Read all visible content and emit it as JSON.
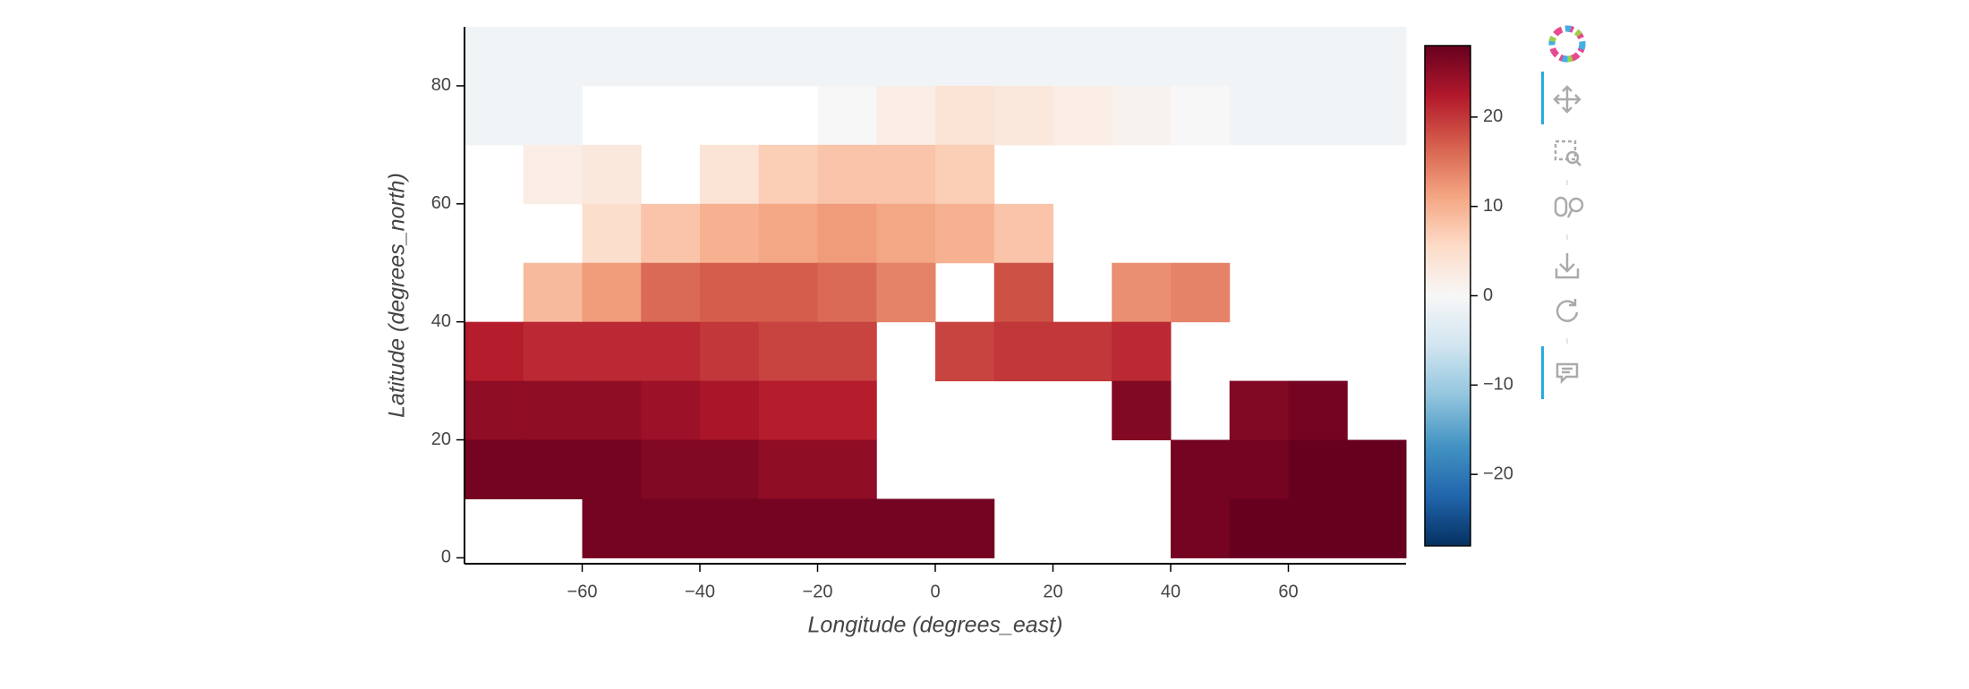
{
  "chart_data": {
    "type": "heatmap",
    "x_label": "Longitude (degrees_east)",
    "y_label": "Latitude (degrees_north)",
    "x": [
      -75,
      -65,
      -55,
      -45,
      -35,
      -25,
      -15,
      -5,
      5,
      15,
      25,
      35,
      45,
      55,
      65,
      75
    ],
    "y": [
      85,
      75,
      65,
      55,
      45,
      35,
      25,
      15,
      5
    ],
    "cell_size": 10,
    "values": [
      [
        -1,
        -1,
        -1,
        -1,
        -1,
        -1,
        -1,
        -1,
        -1,
        -1,
        -1,
        -1,
        -1,
        -1,
        -1,
        -1
      ],
      [
        -1,
        -1,
        null,
        null,
        null,
        null,
        0,
        2,
        4,
        3,
        2,
        1,
        0,
        -1,
        -1,
        -1
      ],
      [
        null,
        2,
        3,
        null,
        4,
        7,
        8,
        8,
        7,
        null,
        null,
        null,
        null,
        null,
        null,
        null
      ],
      [
        null,
        null,
        5,
        8,
        10,
        11,
        12,
        11,
        10,
        8,
        null,
        null,
        null,
        null,
        null,
        null
      ],
      [
        null,
        9,
        12,
        16,
        17,
        17,
        16,
        14,
        null,
        18,
        null,
        13,
        14,
        null,
        null,
        null
      ],
      [
        22,
        21,
        21,
        21,
        20,
        19,
        19,
        null,
        19,
        20,
        20,
        21,
        null,
        null,
        null,
        null
      ],
      [
        25,
        25,
        25,
        24,
        23,
        22,
        22,
        null,
        null,
        null,
        null,
        26,
        null,
        26,
        27,
        null
      ],
      [
        27,
        27,
        27,
        26,
        26,
        25,
        25,
        null,
        null,
        null,
        null,
        null,
        27,
        27,
        28,
        28
      ],
      [
        null,
        null,
        27,
        27,
        27,
        27,
        27,
        27,
        27,
        null,
        null,
        null,
        27,
        28,
        28,
        28
      ]
    ],
    "xlim": [
      -80,
      80
    ],
    "ylim": [
      -1,
      90
    ],
    "xticks": [
      {
        "value": -60,
        "label": "−60"
      },
      {
        "value": -40,
        "label": "−40"
      },
      {
        "value": -20,
        "label": "−20"
      },
      0,
      20,
      40,
      60
    ],
    "yticks": [
      0,
      20,
      40,
      60,
      80
    ],
    "colormap": "RdBu_r",
    "clim": [
      -28,
      28
    ],
    "cticks": [
      {
        "value": -20,
        "label": "−20"
      },
      {
        "value": -10,
        "label": "−10"
      },
      0,
      10,
      20
    ]
  }
}
